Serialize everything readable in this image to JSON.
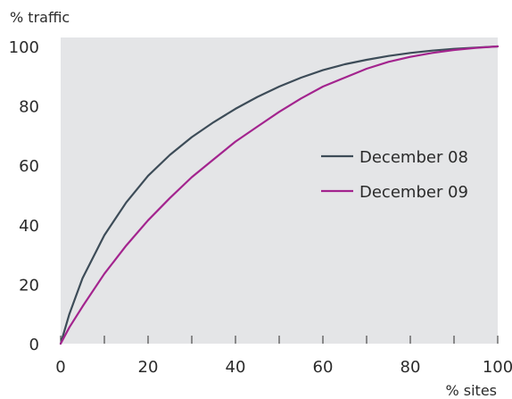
{
  "chart_data": {
    "type": "line",
    "title": "",
    "xlabel": "% sites",
    "ylabel": "% traffic",
    "xlim": [
      0,
      100
    ],
    "ylim": [
      0,
      100
    ],
    "x_ticks": [
      0,
      20,
      40,
      60,
      80,
      100
    ],
    "x_minor_ticks": [
      10,
      30,
      50,
      70,
      90
    ],
    "y_ticks": [
      0,
      20,
      40,
      60,
      80,
      100
    ],
    "grid": false,
    "legend_position": "right",
    "background": "#e4e5e7",
    "series": [
      {
        "name": "December 08",
        "color": "#3d4c58",
        "x": [
          0,
          2,
          5,
          10,
          15,
          20,
          25,
          30,
          35,
          40,
          45,
          50,
          55,
          60,
          65,
          70,
          75,
          80,
          85,
          90,
          95,
          100
        ],
        "y": [
          0,
          10,
          22,
          36.5,
          47.5,
          56.5,
          63.5,
          69.5,
          74.5,
          79,
          83,
          86.5,
          89.5,
          92,
          94,
          95.5,
          96.8,
          97.8,
          98.6,
          99.2,
          99.6,
          100
        ]
      },
      {
        "name": "December 09",
        "color": "#a3248e",
        "x": [
          0,
          2,
          5,
          10,
          15,
          20,
          25,
          30,
          35,
          40,
          45,
          50,
          55,
          60,
          65,
          70,
          75,
          80,
          85,
          90,
          95,
          100
        ],
        "y": [
          0,
          5.5,
          12.5,
          23.5,
          33,
          41.5,
          49,
          56,
          62,
          68,
          73,
          78,
          82.5,
          86.5,
          89.5,
          92.5,
          94.8,
          96.5,
          97.8,
          98.8,
          99.5,
          100
        ]
      }
    ]
  }
}
